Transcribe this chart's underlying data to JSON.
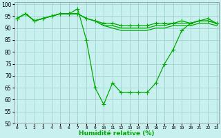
{
  "x": [
    0,
    1,
    2,
    3,
    4,
    5,
    6,
    7,
    8,
    9,
    10,
    11,
    12,
    13,
    14,
    15,
    16,
    17,
    18,
    19,
    20,
    21,
    22,
    23
  ],
  "line1": [
    94,
    96,
    93,
    94,
    95,
    96,
    96,
    98,
    85,
    65,
    58,
    67,
    63,
    63,
    63,
    63,
    67,
    75,
    81,
    89,
    92,
    93,
    94,
    92
  ],
  "line2": [
    94,
    96,
    93,
    94,
    95,
    96,
    96,
    96,
    94,
    93,
    92,
    92,
    91,
    91,
    91,
    91,
    92,
    92,
    92,
    93,
    92,
    93,
    93,
    92
  ],
  "line3": [
    94,
    96,
    93,
    94,
    95,
    96,
    96,
    96,
    94,
    93,
    91,
    91,
    90,
    90,
    90,
    90,
    91,
    91,
    92,
    92,
    92,
    93,
    93,
    92
  ],
  "line4": [
    94,
    96,
    93,
    94,
    95,
    96,
    96,
    96,
    94,
    93,
    91,
    90,
    89,
    89,
    89,
    89,
    90,
    90,
    91,
    91,
    91,
    92,
    92,
    91
  ],
  "line_color": "#00aa00",
  "bg_color": "#c8f0ee",
  "grid_color": "#99cccc",
  "xlabel": "Humidité relative (%)",
  "ylim": [
    50,
    101
  ],
  "yticks": [
    50,
    55,
    60,
    65,
    70,
    75,
    80,
    85,
    90,
    95,
    100
  ],
  "xlim": [
    -0.3,
    23.3
  ]
}
